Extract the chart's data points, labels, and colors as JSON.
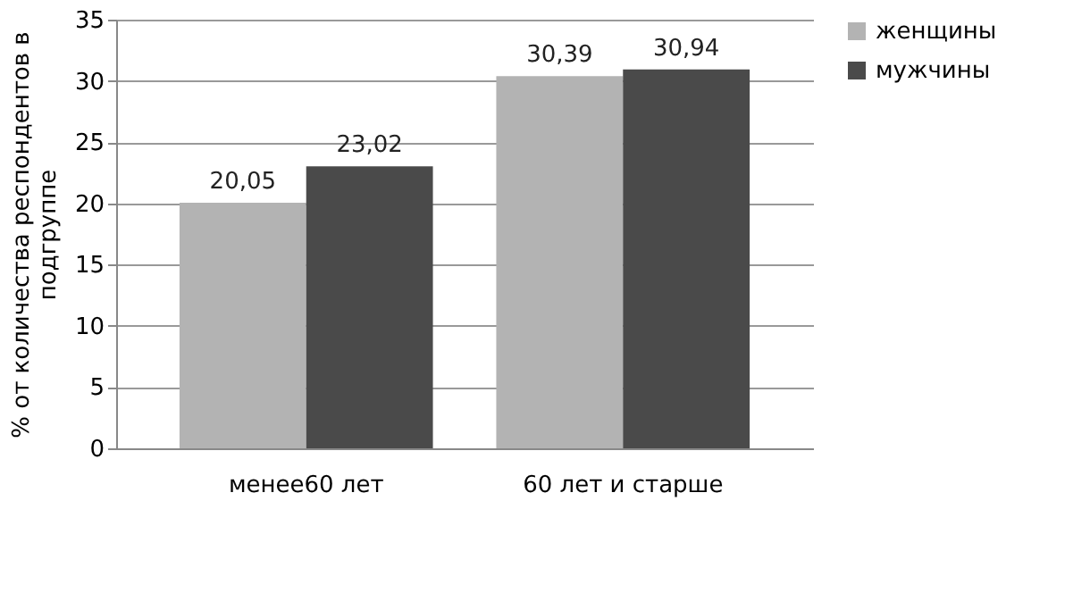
{
  "chart_data": {
    "type": "bar",
    "categories": [
      "менее60 лет",
      "60 лет и старше"
    ],
    "ylabel": "% от количества респондентов в подгруппе",
    "series": [
      {
        "name": "женщины",
        "color": "#b3b3b3",
        "values": [
          20.05,
          30.39
        ],
        "value_labels": [
          "20,05",
          "30,39"
        ]
      },
      {
        "name": "мужчины",
        "color": "#4a4a4a",
        "values": [
          23.02,
          30.94
        ],
        "value_labels": [
          "23,02",
          "30,94"
        ]
      }
    ],
    "ylim": [
      0,
      35
    ],
    "yticks": [
      0,
      5,
      10,
      15,
      20,
      25,
      30,
      35
    ],
    "grid": "y",
    "legend": "right"
  }
}
